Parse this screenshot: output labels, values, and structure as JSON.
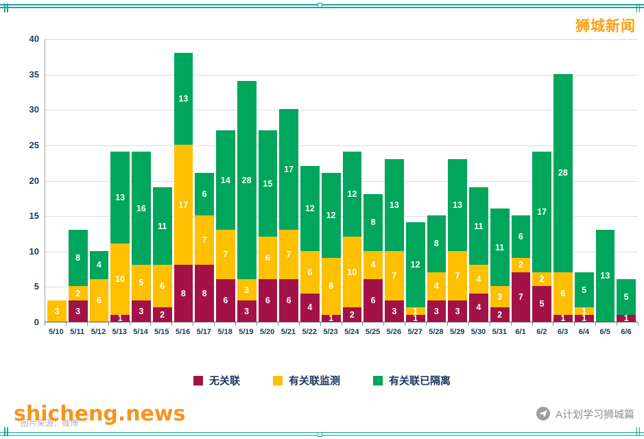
{
  "header": {
    "brand": "狮城新闻"
  },
  "chart_data": {
    "type": "bar",
    "stacked": true,
    "title": "",
    "xlabel": "",
    "ylabel": "",
    "ylim": [
      0,
      40
    ],
    "yticks": [
      0,
      5,
      10,
      15,
      20,
      25,
      30,
      35,
      40
    ],
    "grid": true,
    "legend_position": "bottom",
    "bar_label_color": "#FFFFFF",
    "categories": [
      "5/10",
      "5/11",
      "5/12",
      "5/13",
      "5/14",
      "5/15",
      "5/16",
      "5/17",
      "5/18",
      "5/19",
      "5/20",
      "5/21",
      "5/22",
      "5/23",
      "5/24",
      "5/25",
      "5/26",
      "5/27",
      "5/28",
      "5/29",
      "5/30",
      "5/31",
      "6/1",
      "6/2",
      "6/3",
      "6/4",
      "6/5",
      "6/6"
    ],
    "series": [
      {
        "key": "unlinked",
        "name": "无关联",
        "color": "#A31246",
        "values": [
          0,
          3,
          0,
          1,
          3,
          2,
          8,
          8,
          6,
          3,
          6,
          6,
          4,
          1,
          2,
          6,
          3,
          1,
          3,
          3,
          4,
          2,
          7,
          5,
          1,
          1,
          0,
          1
        ]
      },
      {
        "key": "linked-monitoring",
        "name": "有关联监测",
        "color": "#FFC000",
        "values": [
          3,
          2,
          6,
          10,
          5,
          6,
          17,
          7,
          7,
          3,
          6,
          7,
          6,
          8,
          10,
          4,
          7,
          1,
          4,
          7,
          4,
          3,
          2,
          2,
          6,
          1,
          0,
          0
        ]
      },
      {
        "key": "linked-quarantined",
        "name": "有关联已隔离",
        "color": "#00A65C",
        "values": [
          0,
          8,
          4,
          13,
          16,
          11,
          13,
          6,
          14,
          28,
          15,
          17,
          12,
          12,
          12,
          8,
          13,
          12,
          8,
          13,
          11,
          11,
          6,
          17,
          28,
          5,
          13,
          5
        ]
      }
    ]
  },
  "footer": {
    "caption_gray": "图片来源：微博",
    "watermark": "shicheng.news",
    "credit": "A计划学习狮城篇"
  }
}
